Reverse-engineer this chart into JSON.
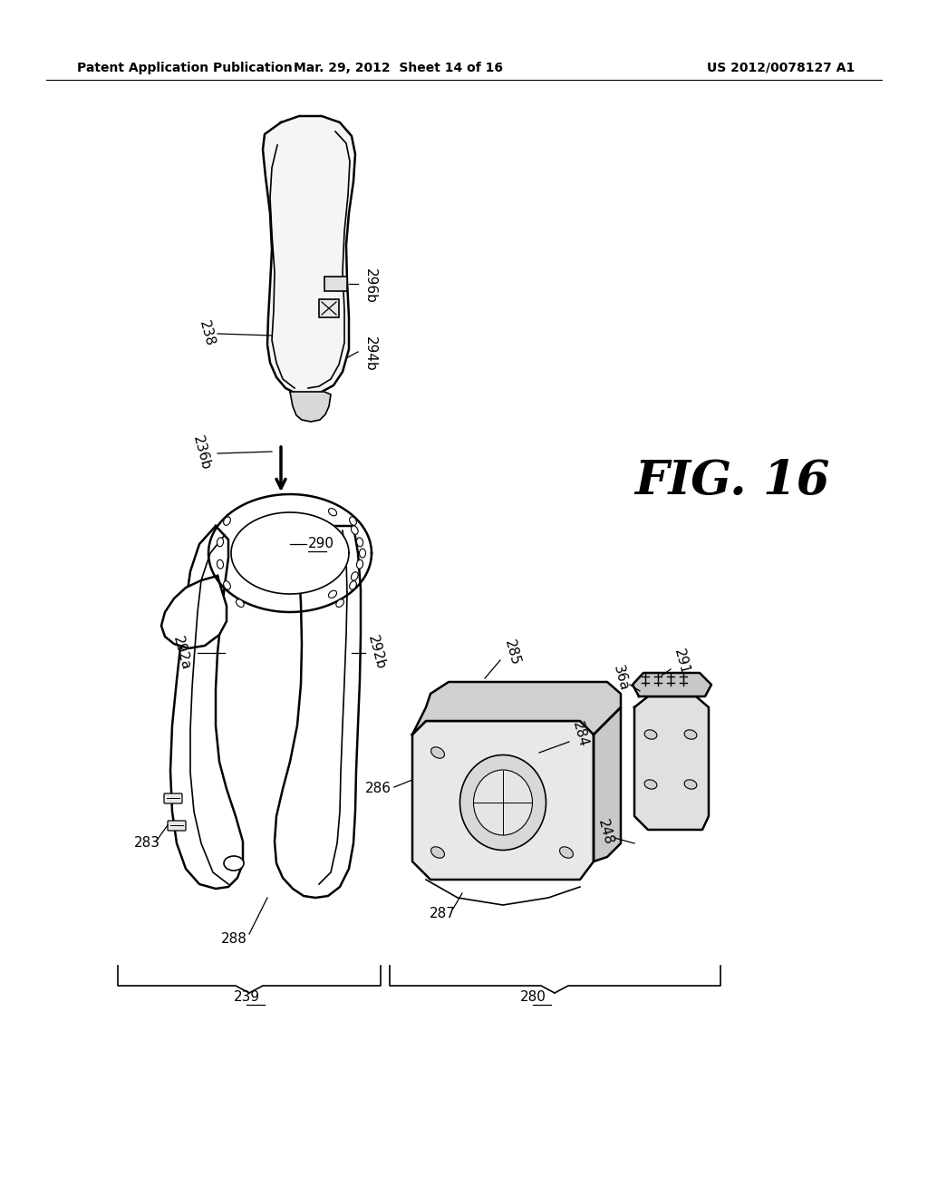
{
  "background_color": "#ffffff",
  "header_left": "Patent Application Publication",
  "header_center": "Mar. 29, 2012  Sheet 14 of 16",
  "header_right": "US 2012/0078127 A1",
  "figure_label": "FIG. 16",
  "text_color": "#000000",
  "line_color": "#000000"
}
